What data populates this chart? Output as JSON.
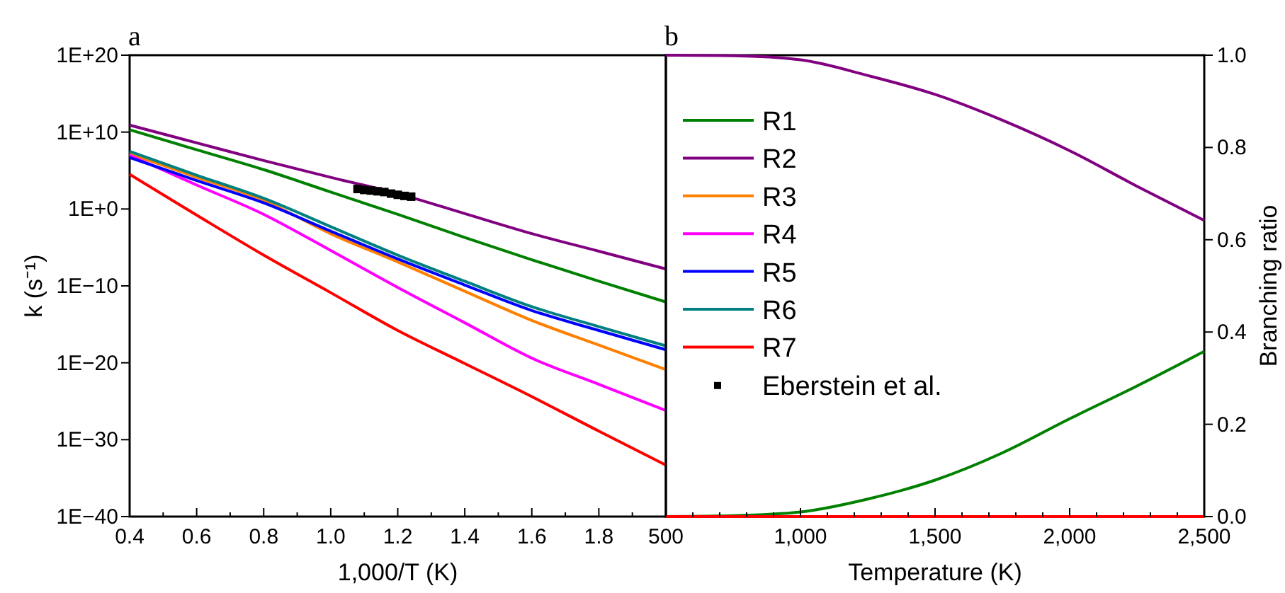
{
  "chart_data": [
    {
      "type": "line",
      "title": "a",
      "xlabel": "1,000/T (K)",
      "ylabel": "k (s⁻¹)",
      "log": true,
      "legend": "right",
      "marker": "none",
      "line_style": "solid",
      "xlim": [
        0.4,
        2.0
      ],
      "ylim": [
        1e-40,
        1e+20
      ],
      "xticks": [
        0.4,
        {
          "value": 0.5,
          "label": null
        },
        0.6,
        {
          "value": 0.7,
          "label": null
        },
        0.8,
        {
          "value": 0.9,
          "label": null
        },
        {
          "value": 1.0,
          "label": "1.0"
        },
        {
          "value": 1.1,
          "label": null
        },
        1.2,
        {
          "value": 1.3,
          "label": null
        },
        1.4,
        {
          "value": 1.5,
          "label": null
        },
        1.6,
        {
          "value": 1.7,
          "label": null
        },
        1.8,
        {
          "value": 1.9,
          "label": null
        },
        {
          "value": 2.0,
          "label": null
        }
      ],
      "yticks": [
        {
          "value": 1e-40,
          "label": "1E−40"
        },
        {
          "value": 1e-30,
          "label": "1E−30"
        },
        {
          "value": 1e-20,
          "label": "1E−20"
        },
        {
          "value": 1e-10,
          "label": "1E−10"
        },
        {
          "value": 1,
          "label": "1E+0"
        },
        {
          "value": 10000000000.0,
          "label": "1E+10"
        },
        {
          "value": 1e+20,
          "label": "1E+20"
        }
      ],
      "x": [
        0.4,
        0.6,
        0.8,
        1.0,
        1.2,
        1.4,
        1.6,
        1.8,
        2.0
      ],
      "series": [
        {
          "name": "R1",
          "color": "#008000",
          "values": [
            20000000000.0,
            50000000.0,
            130000.0,
            160.0,
            0.2,
            0.0002,
            2.5e-07,
            4e-10,
            8e-13
          ]
        },
        {
          "name": "R2",
          "color": "#800080",
          "values": [
            80000000000.0,
            400000000.0,
            2000000.0,
            13000.0,
            100.0,
            0.25,
            0.00063,
            3.2e-06,
            1.6e-08
          ]
        },
        {
          "name": "R3",
          "color": "#ff8000",
          "values": [
            16000000.0,
            13000.0,
            13.0,
            0.0006,
            1.3e-07,
            2e-11,
            3.2e-15,
            2e-18,
            1.3e-21
          ]
        },
        {
          "name": "R4",
          "color": "#ff00ff",
          "values": [
            10000000.0,
            1300.0,
            0.2,
            4e-06,
            6.3e-11,
            1.6e-15,
            4e-20,
            1.6e-23,
            6.3e-27
          ]
        },
        {
          "name": "R5",
          "color": "#0000ff",
          "values": [
            5000000.0,
            5000.0,
            6.3,
            0.0013,
            3.2e-07,
            1.3e-10,
            6.3e-14,
            1.6e-16,
            5e-19
          ]
        },
        {
          "name": "R6",
          "color": "#008080",
          "values": [
            32000000.0,
            25000.0,
            25.0,
            0.005,
            1e-06,
            4e-10,
            2e-13,
            5e-16,
            1.6e-18
          ]
        },
        {
          "name": "R7",
          "color": "#ff0000",
          "values": [
            32000.0,
            0.16,
            1e-06,
            1.3e-11,
            1.6e-16,
            8e-21,
            4e-25,
            1.3e-29,
            5e-34
          ]
        },
        {
          "name": "Eberstein et al.",
          "type": "scatter",
          "marker": "square",
          "color": "#000000",
          "x": [
            1.08,
            1.1,
            1.12,
            1.14,
            1.16,
            1.18,
            1.2,
            1.22,
            1.24
          ],
          "values": [
            400.0,
            300.0,
            250.0,
            200.0,
            160.0,
            100.0,
            70.0,
            50.0,
            40.0
          ]
        }
      ]
    },
    {
      "type": "line",
      "title": "b",
      "xlabel": "Temperature (K)",
      "y2label": "Branching ratio",
      "marker": "none",
      "line_style": "solid",
      "xlim": [
        500,
        2500
      ],
      "y2lim": [
        0,
        1
      ],
      "xticks": [
        500,
        {
          "value": 600,
          "label": null
        },
        {
          "value": 700,
          "label": null
        },
        {
          "value": 800,
          "label": null
        },
        {
          "value": 900,
          "label": null
        },
        {
          "value": 1000,
          "label": "1,000"
        },
        {
          "value": 1100,
          "label": null
        },
        {
          "value": 1200,
          "label": null
        },
        {
          "value": 1300,
          "label": null
        },
        {
          "value": 1400,
          "label": null
        },
        {
          "value": 1500,
          "label": "1,500"
        },
        {
          "value": 1600,
          "label": null
        },
        {
          "value": 1700,
          "label": null
        },
        {
          "value": 1800,
          "label": null
        },
        {
          "value": 1900,
          "label": null
        },
        {
          "value": 2000,
          "label": "2,000"
        },
        {
          "value": 2100,
          "label": null
        },
        {
          "value": 2200,
          "label": null
        },
        {
          "value": 2300,
          "label": null
        },
        {
          "value": 2400,
          "label": null
        },
        {
          "value": 2500,
          "label": "2,500"
        }
      ],
      "y2ticks": [
        {
          "value": 0,
          "label": "0.0"
        },
        0.2,
        0.4,
        0.6,
        0.8,
        {
          "value": 1,
          "label": "1.0"
        }
      ],
      "x": [
        500,
        750,
        1000,
        1250,
        1500,
        1750,
        2000,
        2250,
        2500
      ],
      "series": [
        {
          "color": "#008000",
          "axis": "y2",
          "values": [
            0,
            0.002,
            0.01,
            0.038,
            0.079,
            0.138,
            0.212,
            0.283,
            0.358
          ]
        },
        {
          "color": "#800080",
          "axis": "y2",
          "values": [
            1.0,
            0.999,
            0.99,
            0.956,
            0.915,
            0.859,
            0.793,
            0.716,
            0.642
          ]
        },
        {
          "color": "#ff0000",
          "axis": "y2",
          "values": [
            0,
            0,
            0,
            0,
            0,
            0,
            0,
            0,
            0
          ]
        }
      ]
    }
  ]
}
